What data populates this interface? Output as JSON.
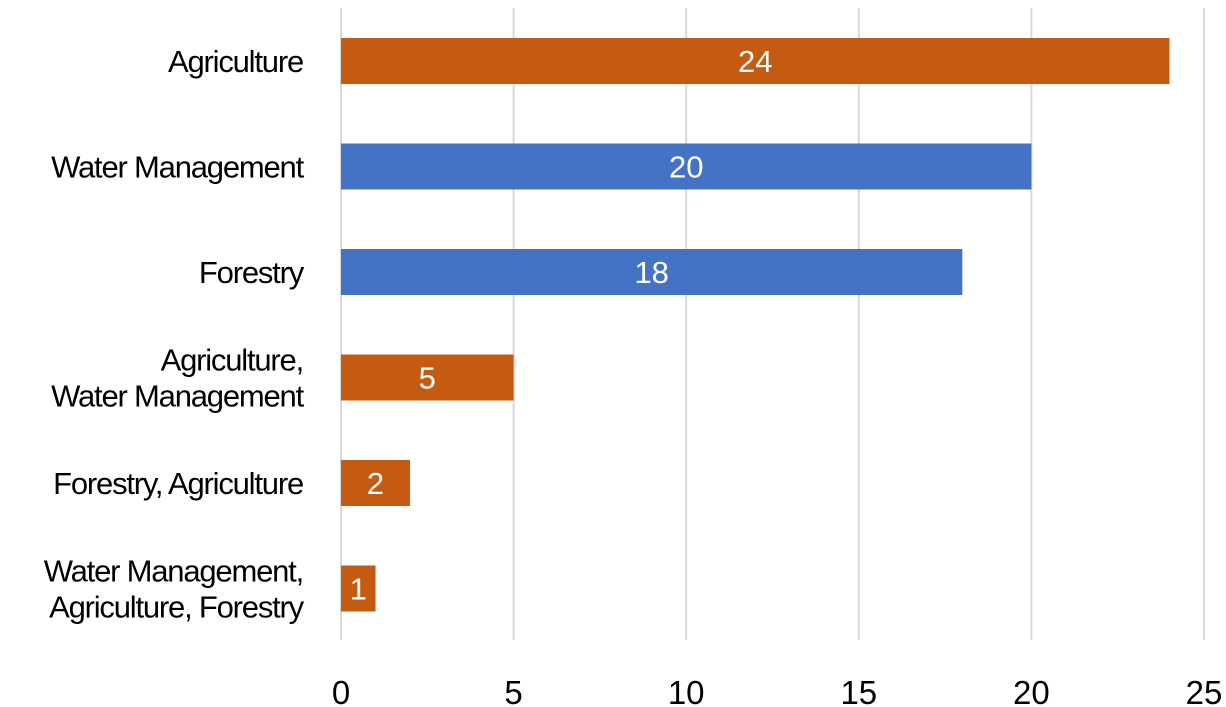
{
  "chart_data": {
    "type": "bar",
    "orientation": "horizontal",
    "categories": [
      [
        "Agriculture"
      ],
      [
        "Water Management"
      ],
      [
        "Forestry"
      ],
      [
        "Agriculture,",
        "Water Management"
      ],
      [
        "Forestry, Agriculture"
      ],
      [
        "Water Management,",
        "Agriculture, Forestry"
      ]
    ],
    "values": [
      24,
      20,
      18,
      5,
      2,
      1
    ],
    "bar_colors": [
      "#C55A11",
      "#4472C4",
      "#4472C4",
      "#C55A11",
      "#C55A11",
      "#C55A11"
    ],
    "data_labels": [
      "24",
      "20",
      "18",
      "5",
      "2",
      "1"
    ],
    "xlim": [
      0,
      25
    ],
    "xticks": [
      "0",
      "5",
      "10",
      "15",
      "20",
      "25"
    ],
    "grid": "vertical",
    "legend": "none",
    "title": "",
    "xlabel": "",
    "ylabel": ""
  }
}
